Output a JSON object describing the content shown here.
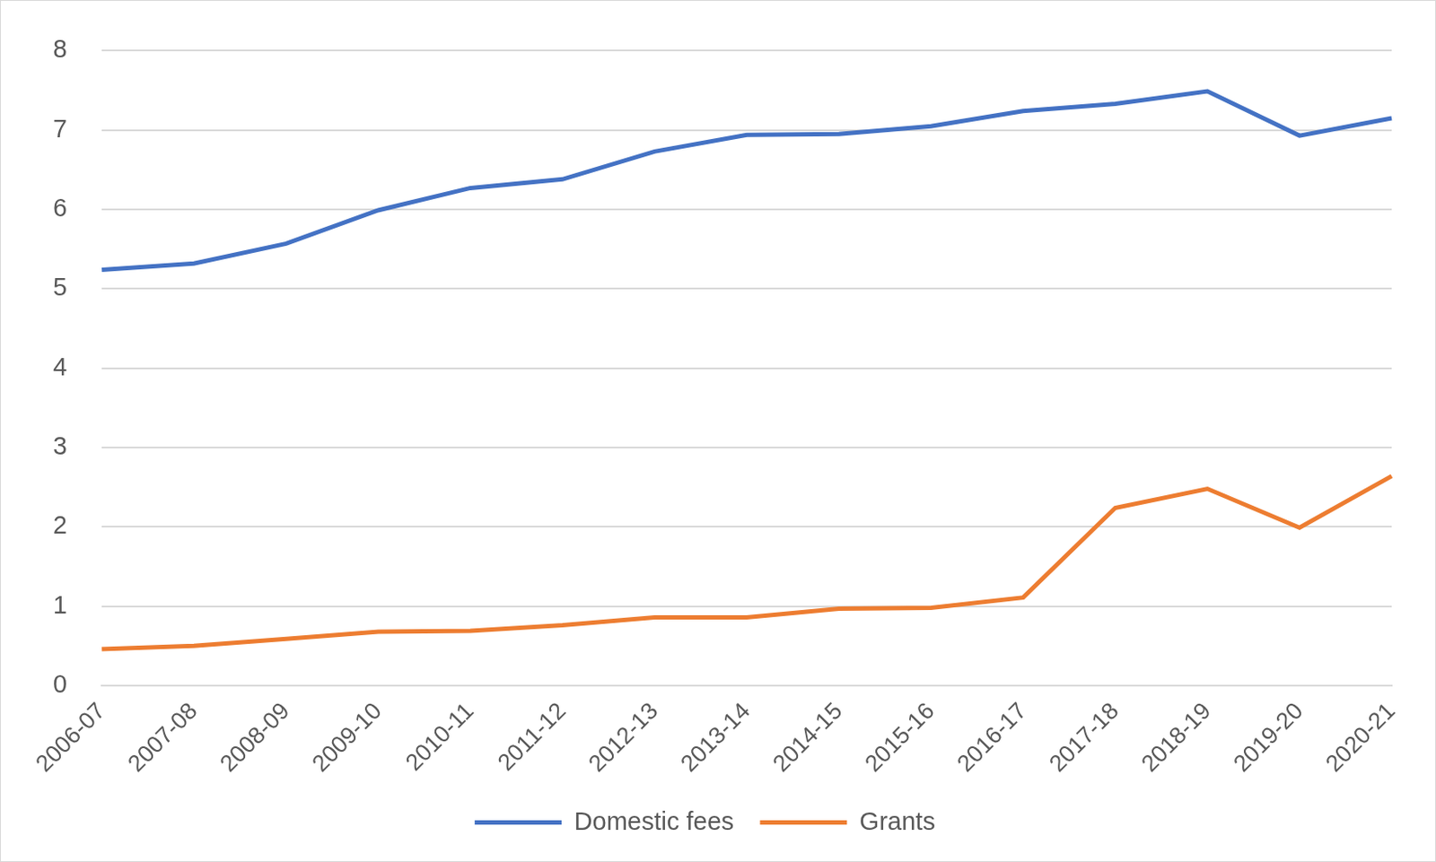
{
  "chart_data": {
    "type": "line",
    "categories": [
      "2006-07",
      "2007-08",
      "2008-09",
      "2009-10",
      "2010-11",
      "2011-12",
      "2012-13",
      "2013-14",
      "2014-15",
      "2015-16",
      "2016-17",
      "2017-18",
      "2018-19",
      "2019-20",
      "2020-21"
    ],
    "series": [
      {
        "name": "Domestic fees",
        "color": "#4472c4",
        "values": [
          5.24,
          5.32,
          5.57,
          5.99,
          6.27,
          6.38,
          6.73,
          6.94,
          6.95,
          7.05,
          7.24,
          7.33,
          7.49,
          6.93,
          7.15
        ]
      },
      {
        "name": "Grants",
        "color": "#ed7d31",
        "values": [
          0.46,
          0.5,
          0.59,
          0.68,
          0.69,
          0.76,
          0.86,
          0.86,
          0.97,
          0.98,
          1.11,
          2.24,
          2.48,
          1.99,
          2.64
        ]
      }
    ],
    "ylim": [
      0,
      8
    ],
    "yticks": [
      0,
      1,
      2,
      3,
      4,
      5,
      6,
      7,
      8
    ],
    "grid": true,
    "legend": "bottom"
  }
}
